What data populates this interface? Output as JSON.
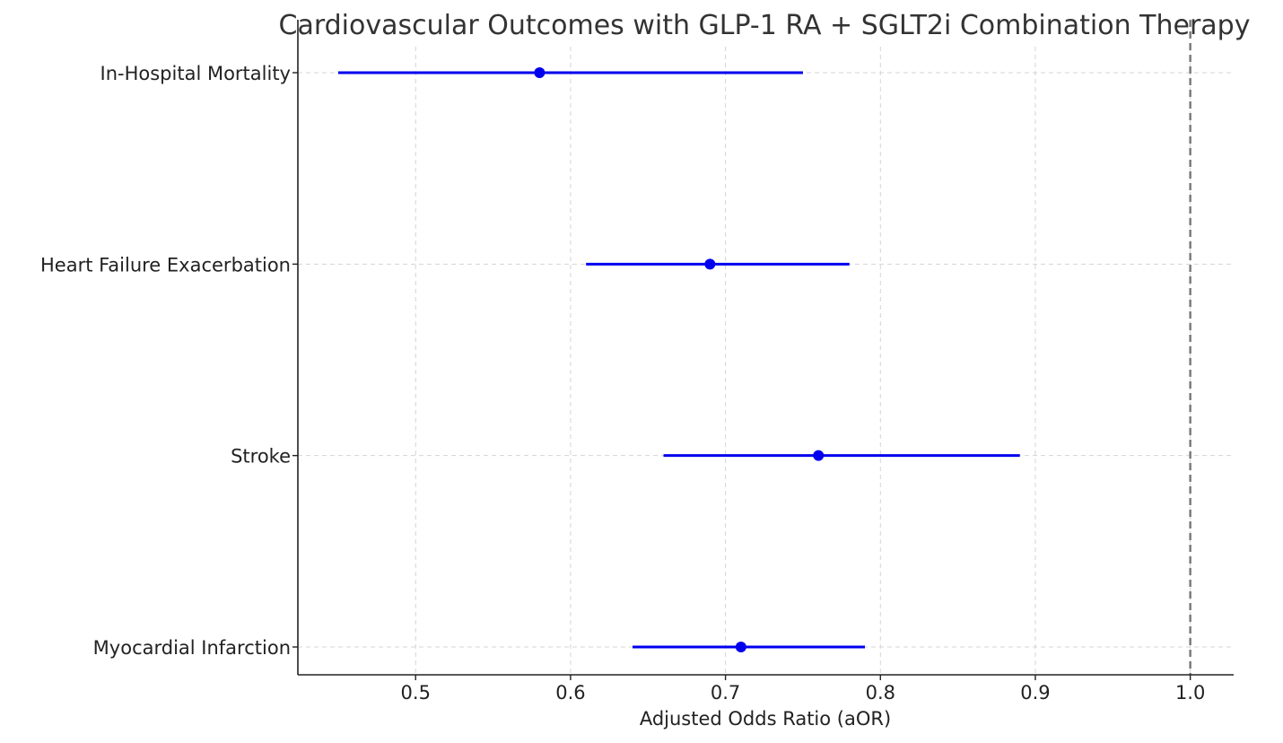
{
  "chart_data": {
    "type": "forest",
    "title": "Cardiovascular Outcomes with GLP-1 RA + SGLT2i Combination Therapy",
    "xlabel": "Adjusted Odds Ratio (aOR)",
    "ylabel": "",
    "xlim": [
      0.424,
      1.028
    ],
    "xticks": [
      0.5,
      0.6,
      0.7,
      0.8,
      0.9,
      1.0
    ],
    "xtick_labels": [
      "0.5",
      "0.6",
      "0.7",
      "0.8",
      "0.9",
      "1.0"
    ],
    "grid": true,
    "reference_line": {
      "x": 1.0,
      "style": "dashed",
      "color": "#777777"
    },
    "series_color": "#0000ee",
    "outcomes": [
      {
        "label": "In-Hospital Mortality",
        "aor": 0.58,
        "ci_low": 0.45,
        "ci_high": 0.75
      },
      {
        "label": "Heart Failure Exacerbation",
        "aor": 0.69,
        "ci_low": 0.61,
        "ci_high": 0.78
      },
      {
        "label": "Stroke",
        "aor": 0.76,
        "ci_low": 0.66,
        "ci_high": 0.89
      },
      {
        "label": "Myocardial Infarction",
        "aor": 0.71,
        "ci_low": 0.64,
        "ci_high": 0.79
      }
    ]
  }
}
